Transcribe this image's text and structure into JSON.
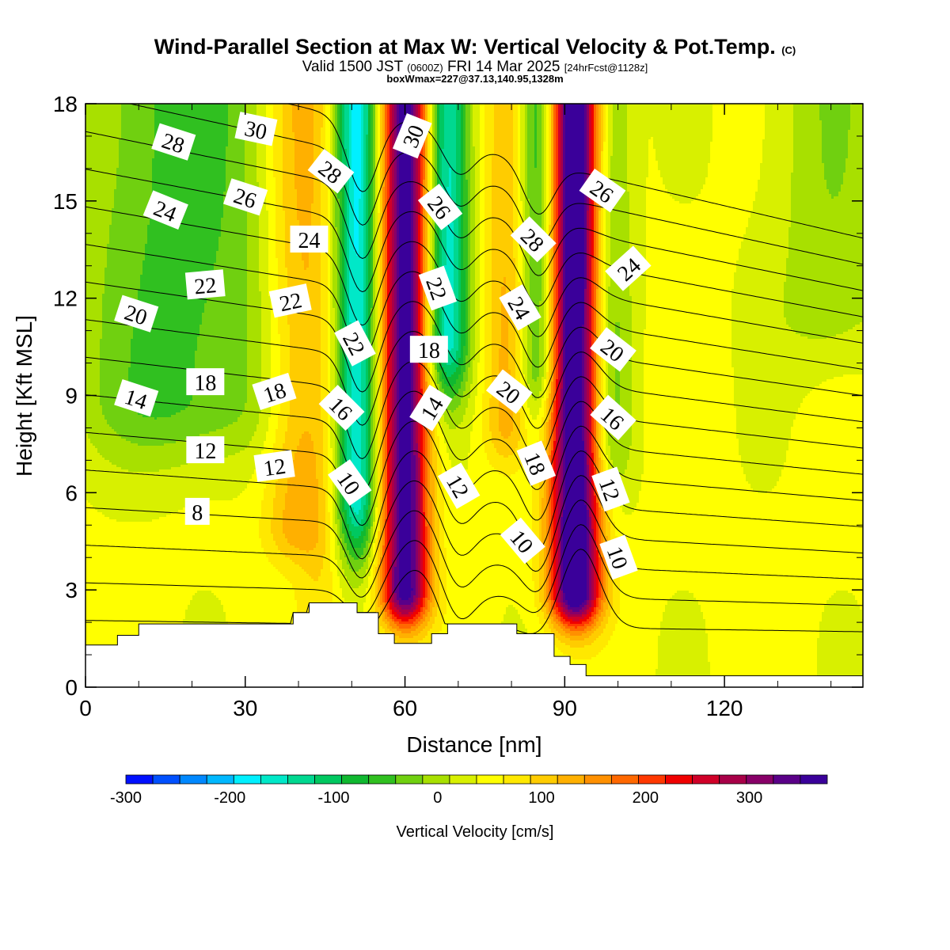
{
  "header": {
    "title": "Wind-Parallel Section at Max W: Vertical Velocity & Pot.Temp.",
    "title_mark": "(C)",
    "valid_prefix": "Valid 1500 JST",
    "valid_utc": "(0600Z)",
    "valid_date": "FRI 14 Mar 2025",
    "forecast": "[24hrFcst@1128z]",
    "box_info": "boxWmax=227@37.13,140.95,1328m"
  },
  "chart_data": {
    "type": "heatmap",
    "xlabel": "Distance [nm]",
    "ylabel": "Height [Kft MSL]",
    "xlim": [
      0,
      146
    ],
    "ylim": [
      0,
      18
    ],
    "x_ticks": [
      0,
      30,
      60,
      90,
      120
    ],
    "y_ticks": [
      0,
      3,
      6,
      9,
      12,
      15,
      18
    ],
    "x_minor_step": 10,
    "y_minor_step": 1,
    "colorbar": {
      "title": "Vertical Velocity [cm/s]",
      "min": -300,
      "max": 350,
      "step": 25,
      "tick_values": [
        -300,
        -200,
        -100,
        0,
        100,
        200,
        300
      ],
      "tick_labels": [
        "-300",
        "-200",
        "-100",
        "0",
        "100",
        "200",
        "300"
      ],
      "colors": [
        "#0010ff",
        "#0050ff",
        "#0088ff",
        "#00b8ff",
        "#00f0ff",
        "#00e8c8",
        "#00d890",
        "#00c860",
        "#10b830",
        "#30c020",
        "#70d010",
        "#a8e000",
        "#d8f000",
        "#ffff00",
        "#ffe800",
        "#ffcc00",
        "#ffb000",
        "#ff9000",
        "#ff6800",
        "#ff3800",
        "#f00000",
        "#d00028",
        "#a80048",
        "#880068",
        "#5a0088",
        "#3a009a"
      ]
    },
    "velocity_updrafts": [
      {
        "x": 60,
        "peak": 320,
        "width": 3.2,
        "z_base": 3
      },
      {
        "x": 92,
        "peak": 360,
        "width": 3.4,
        "z_base": 3
      },
      {
        "x": 39,
        "peak": 80,
        "width": 4,
        "z_base": 5
      },
      {
        "x": 44,
        "peak": 40,
        "width": 3,
        "z_base": 2.5
      },
      {
        "x": 79,
        "peak": 70,
        "width": 3,
        "z_base": 8
      },
      {
        "x": 84,
        "peak": 30,
        "width": 3,
        "z_base": 9
      }
    ],
    "velocity_downdrafts": [
      {
        "x": 51,
        "peak": -210,
        "width": 2.8,
        "z_base": 6
      },
      {
        "x": 68,
        "peak": -200,
        "width": 2.8,
        "z_base": 11
      },
      {
        "x": 85,
        "peak": -150,
        "width": 2.6,
        "z_base": 10
      },
      {
        "x": 98,
        "peak": -90,
        "width": 3,
        "z_base": 8
      },
      {
        "x": 18,
        "peak": -90,
        "width": 14,
        "z_base": 9
      },
      {
        "x": 140,
        "peak": -50,
        "width": 8,
        "z_base": 12
      }
    ],
    "terrain_profile": [
      {
        "x": 0,
        "z": 1.3
      },
      {
        "x": 6,
        "z": 1.6
      },
      {
        "x": 10,
        "z": 1.95
      },
      {
        "x": 39,
        "z": 2.3
      },
      {
        "x": 42,
        "z": 2.6
      },
      {
        "x": 51,
        "z": 2.3
      },
      {
        "x": 55,
        "z": 1.65
      },
      {
        "x": 58,
        "z": 1.35
      },
      {
        "x": 65,
        "z": 1.65
      },
      {
        "x": 68,
        "z": 1.95
      },
      {
        "x": 81,
        "z": 1.65
      },
      {
        "x": 88,
        "z": 0.95
      },
      {
        "x": 91,
        "z": 0.7
      },
      {
        "x": 94,
        "z": 0.35
      },
      {
        "x": 146,
        "z": 0.35
      }
    ],
    "theta_contour_levels": [
      2,
      4,
      6,
      8,
      10,
      12,
      14,
      16,
      18,
      20,
      22,
      24,
      26,
      28,
      30,
      32
    ],
    "theta_contour_labels": [
      {
        "text": "28",
        "x": 16.5,
        "z": 16.8,
        "angle": 18
      },
      {
        "text": "30",
        "x": 32,
        "z": 17.2,
        "angle": 12
      },
      {
        "text": "28",
        "x": 46,
        "z": 15.9,
        "angle": 38
      },
      {
        "text": "30",
        "x": 61.5,
        "z": 17.0,
        "angle": -68
      },
      {
        "text": "26",
        "x": 30,
        "z": 15.1,
        "angle": 18
      },
      {
        "text": "24",
        "x": 15,
        "z": 14.7,
        "angle": 22
      },
      {
        "text": "24",
        "x": 42,
        "z": 13.8,
        "angle": 0
      },
      {
        "text": "26",
        "x": 66.5,
        "z": 14.8,
        "angle": 52
      },
      {
        "text": "28",
        "x": 84,
        "z": 13.8,
        "angle": 45
      },
      {
        "text": "26",
        "x": 97,
        "z": 15.3,
        "angle": 35
      },
      {
        "text": "24",
        "x": 102,
        "z": 12.9,
        "angle": -42
      },
      {
        "text": "22",
        "x": 22.5,
        "z": 12.4,
        "angle": -5
      },
      {
        "text": "22",
        "x": 38.5,
        "z": 11.9,
        "angle": -12
      },
      {
        "text": "22",
        "x": 66,
        "z": 12.3,
        "angle": 70
      },
      {
        "text": "24",
        "x": 81.5,
        "z": 11.7,
        "angle": 60
      },
      {
        "text": "20",
        "x": 9.5,
        "z": 11.5,
        "angle": 18
      },
      {
        "text": "22",
        "x": 50.5,
        "z": 10.6,
        "angle": 62
      },
      {
        "text": "18",
        "x": 64.5,
        "z": 10.4,
        "angle": 0
      },
      {
        "text": "20",
        "x": 99,
        "z": 10.4,
        "angle": 38
      },
      {
        "text": "18",
        "x": 22.5,
        "z": 9.4,
        "angle": 0
      },
      {
        "text": "18",
        "x": 35.5,
        "z": 9.1,
        "angle": -18
      },
      {
        "text": "20",
        "x": 79.5,
        "z": 9.1,
        "angle": 38
      },
      {
        "text": "14",
        "x": 9.5,
        "z": 8.9,
        "angle": 18
      },
      {
        "text": "16",
        "x": 48,
        "z": 8.6,
        "angle": 45
      },
      {
        "text": "14",
        "x": 65,
        "z": 8.6,
        "angle": -58
      },
      {
        "text": "16",
        "x": 99,
        "z": 8.3,
        "angle": 42
      },
      {
        "text": "12",
        "x": 22.5,
        "z": 7.3,
        "angle": 0
      },
      {
        "text": "12",
        "x": 35.5,
        "z": 6.8,
        "angle": -8
      },
      {
        "text": "18",
        "x": 84.5,
        "z": 6.9,
        "angle": 68
      },
      {
        "text": "10",
        "x": 49.5,
        "z": 6.3,
        "angle": 55
      },
      {
        "text": "12",
        "x": 70,
        "z": 6.2,
        "angle": 60
      },
      {
        "text": "12",
        "x": 98.5,
        "z": 6.1,
        "angle": 70
      },
      {
        "text": "8",
        "x": 21,
        "z": 5.4,
        "angle": 0
      },
      {
        "text": "10",
        "x": 82,
        "z": 4.5,
        "angle": 50
      },
      {
        "text": "10",
        "x": 100,
        "z": 4.0,
        "angle": 70
      }
    ]
  }
}
